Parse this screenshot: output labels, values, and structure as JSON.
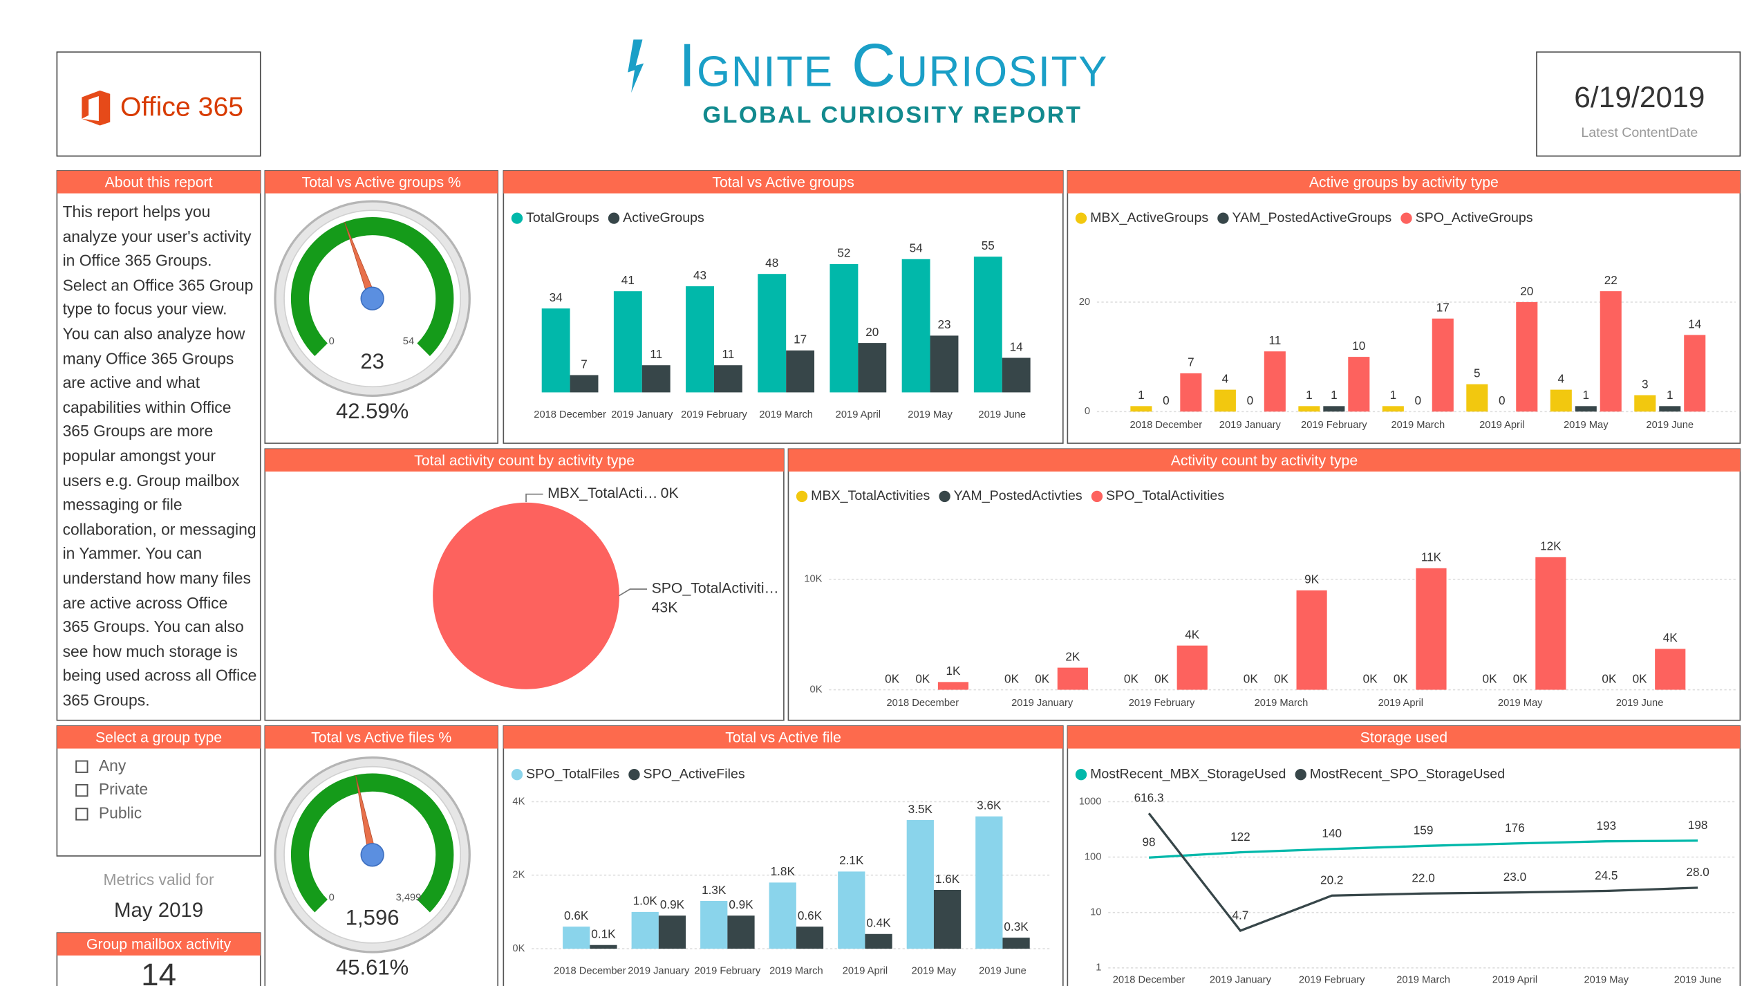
{
  "header": {
    "logo": "Office 365",
    "title": "Ignite Curiosity",
    "subtitle": "GLOBAL CURIOSITY REPORT",
    "date": "6/19/2019",
    "date_caption": "Latest ContentDate"
  },
  "about": {
    "title": "About this report",
    "text": "This report helps you analyze your user's activity in Office 365 Groups. Select an Office 365 Group type to focus your view. You can also analyze how many Office 365 Groups are active and what capabilities within Office 365 Groups are more popular amongst your users e.g. Group mailbox messaging or file collaboration, or messaging in Yammer. You can understand how many files are active across Office 365 Groups. You can also see how much storage is being used across all Office 365 Groups."
  },
  "slicer": {
    "title": "Select a group type",
    "options": [
      "Any",
      "Private",
      "Public"
    ]
  },
  "metrics": {
    "caption": "Metrics valid for",
    "value": "May 2019"
  },
  "mailbox_card": {
    "title": "Group mailbox activity",
    "value": 14
  },
  "chart_data": [
    {
      "type": "gauge",
      "title": "Total vs Active groups %",
      "min": 0,
      "max": 54,
      "value": 23,
      "percent": 42.59,
      "percent_label": "42.59%",
      "color": "#159b1a"
    },
    {
      "type": "bar",
      "title": "Total vs Active groups",
      "categories": [
        "2018 December",
        "2019 January",
        "2019 February",
        "2019 March",
        "2019 April",
        "2019 May",
        "2019 June"
      ],
      "series": [
        {
          "name": "TotalGroups",
          "color": "#01b8aa",
          "values": [
            34,
            41,
            43,
            48,
            52,
            54,
            55
          ]
        },
        {
          "name": "ActiveGroups",
          "color": "#374649",
          "values": [
            7,
            11,
            11,
            17,
            20,
            23,
            14
          ]
        }
      ]
    },
    {
      "type": "bar",
      "title": "Active groups by activity type",
      "categories": [
        "2018 December",
        "2019 January",
        "2019 February",
        "2019 March",
        "2019 April",
        "2019 May",
        "2019 June"
      ],
      "series": [
        {
          "name": "MBX_ActiveGroups",
          "color": "#f2c80f",
          "values": [
            1,
            4,
            1,
            1,
            5,
            4,
            3
          ]
        },
        {
          "name": "YAM_PostedActiveGroups",
          "color": "#374649",
          "values": [
            0,
            0,
            1,
            0,
            0,
            1,
            1
          ]
        },
        {
          "name": "SPO_ActiveGroups",
          "color": "#fd625e",
          "values": [
            7,
            11,
            10,
            17,
            20,
            22,
            14
          ]
        }
      ],
      "ylim": [
        0,
        25
      ],
      "yticks": [
        0,
        20
      ],
      "grid": true
    },
    {
      "type": "pie",
      "title": "Total activity count by activity type",
      "categories": [
        "MBX_TotalActi…",
        "SPO_TotalActiviti…"
      ],
      "values": [
        0,
        43000
      ],
      "value_labels": [
        "0K",
        "43K"
      ],
      "colors": [
        "#f2c80f",
        "#fd625e"
      ]
    },
    {
      "type": "bar",
      "title": "Activity count by activity type",
      "categories": [
        "2018 December",
        "2019 January",
        "2019 February",
        "2019 March",
        "2019 April",
        "2019 May",
        "2019 June"
      ],
      "series": [
        {
          "name": "MBX_TotalActivities",
          "color": "#f2c80f",
          "values": [
            0,
            0,
            0,
            0,
            0,
            0,
            0
          ],
          "value_labels": [
            "0K",
            "0K",
            "0K",
            "0K",
            "0K",
            "0K",
            "0K"
          ]
        },
        {
          "name": "YAM_PostedActivties",
          "color": "#374649",
          "values": [
            0,
            0,
            0,
            0,
            0,
            0,
            0
          ],
          "value_labels": [
            "0K",
            "0K",
            "0K",
            "0K",
            "0K",
            "0K",
            "0K"
          ]
        },
        {
          "name": "SPO_TotalActivities",
          "color": "#fd625e",
          "values": [
            700,
            2000,
            4000,
            9000,
            11000,
            12000,
            3700
          ],
          "value_labels": [
            "1K",
            "2K",
            "4K",
            "9K",
            "11K",
            "12K",
            "4K"
          ]
        }
      ],
      "ylim": [
        0,
        13000
      ],
      "yticks": [
        {
          "value": 0,
          "label": "0K"
        },
        {
          "value": 10000,
          "label": "10K"
        }
      ],
      "grid": true
    },
    {
      "type": "gauge",
      "title": "Total vs Active files %",
      "min": 0,
      "max": 3499,
      "max_label": "3,499",
      "value": 1596,
      "value_label": "1,596",
      "percent": 45.61,
      "percent_label": "45.61%",
      "color": "#159b1a"
    },
    {
      "type": "bar",
      "title": "Total vs Active file",
      "categories": [
        "2018 December",
        "2019 January",
        "2019 February",
        "2019 March",
        "2019 April",
        "2019 May",
        "2019 June"
      ],
      "series": [
        {
          "name": "SPO_TotalFiles",
          "color": "#8ad4eb",
          "values": [
            600,
            1000,
            1300,
            1800,
            2100,
            3500,
            3600
          ],
          "value_labels": [
            "0.6K",
            "1.0K",
            "1.3K",
            "1.8K",
            "2.1K",
            "3.5K",
            "3.6K"
          ]
        },
        {
          "name": "SPO_ActiveFiles",
          "color": "#374649",
          "values": [
            100,
            900,
            900,
            600,
            400,
            1600,
            300
          ],
          "value_labels": [
            "0.1K",
            "0.9K",
            "0.9K",
            "0.6K",
            "0.4K",
            "1.6K",
            "0.3K"
          ]
        }
      ],
      "ylim": [
        0,
        4000
      ],
      "yticks": [
        {
          "value": 0,
          "label": "0K"
        },
        {
          "value": 2000,
          "label": "2K"
        },
        {
          "value": 4000,
          "label": "4K"
        }
      ],
      "grid": true
    },
    {
      "type": "line",
      "title": "Storage used",
      "categories": [
        "2018 December",
        "2019 January",
        "2019 February",
        "2019 March",
        "2019 April",
        "2019 May",
        "2019 June"
      ],
      "series": [
        {
          "name": "MostRecent_MBX_StorageUsed",
          "color": "#01b8aa",
          "values": [
            98,
            122,
            140,
            159,
            176,
            193,
            198
          ]
        },
        {
          "name": "MostRecent_SPO_StorageUsed",
          "color": "#374649",
          "values": [
            616.3,
            4.7,
            20.2,
            22.0,
            23.0,
            24.5,
            28.0
          ],
          "value_labels": [
            "616.3",
            "4.7",
            "20.2",
            "22.0",
            "23.0",
            "24.5",
            "28.0"
          ]
        }
      ],
      "ylim": [
        1,
        1000
      ],
      "yticks": [
        1,
        10,
        100,
        1000
      ],
      "log_y": true,
      "grid": true
    }
  ]
}
